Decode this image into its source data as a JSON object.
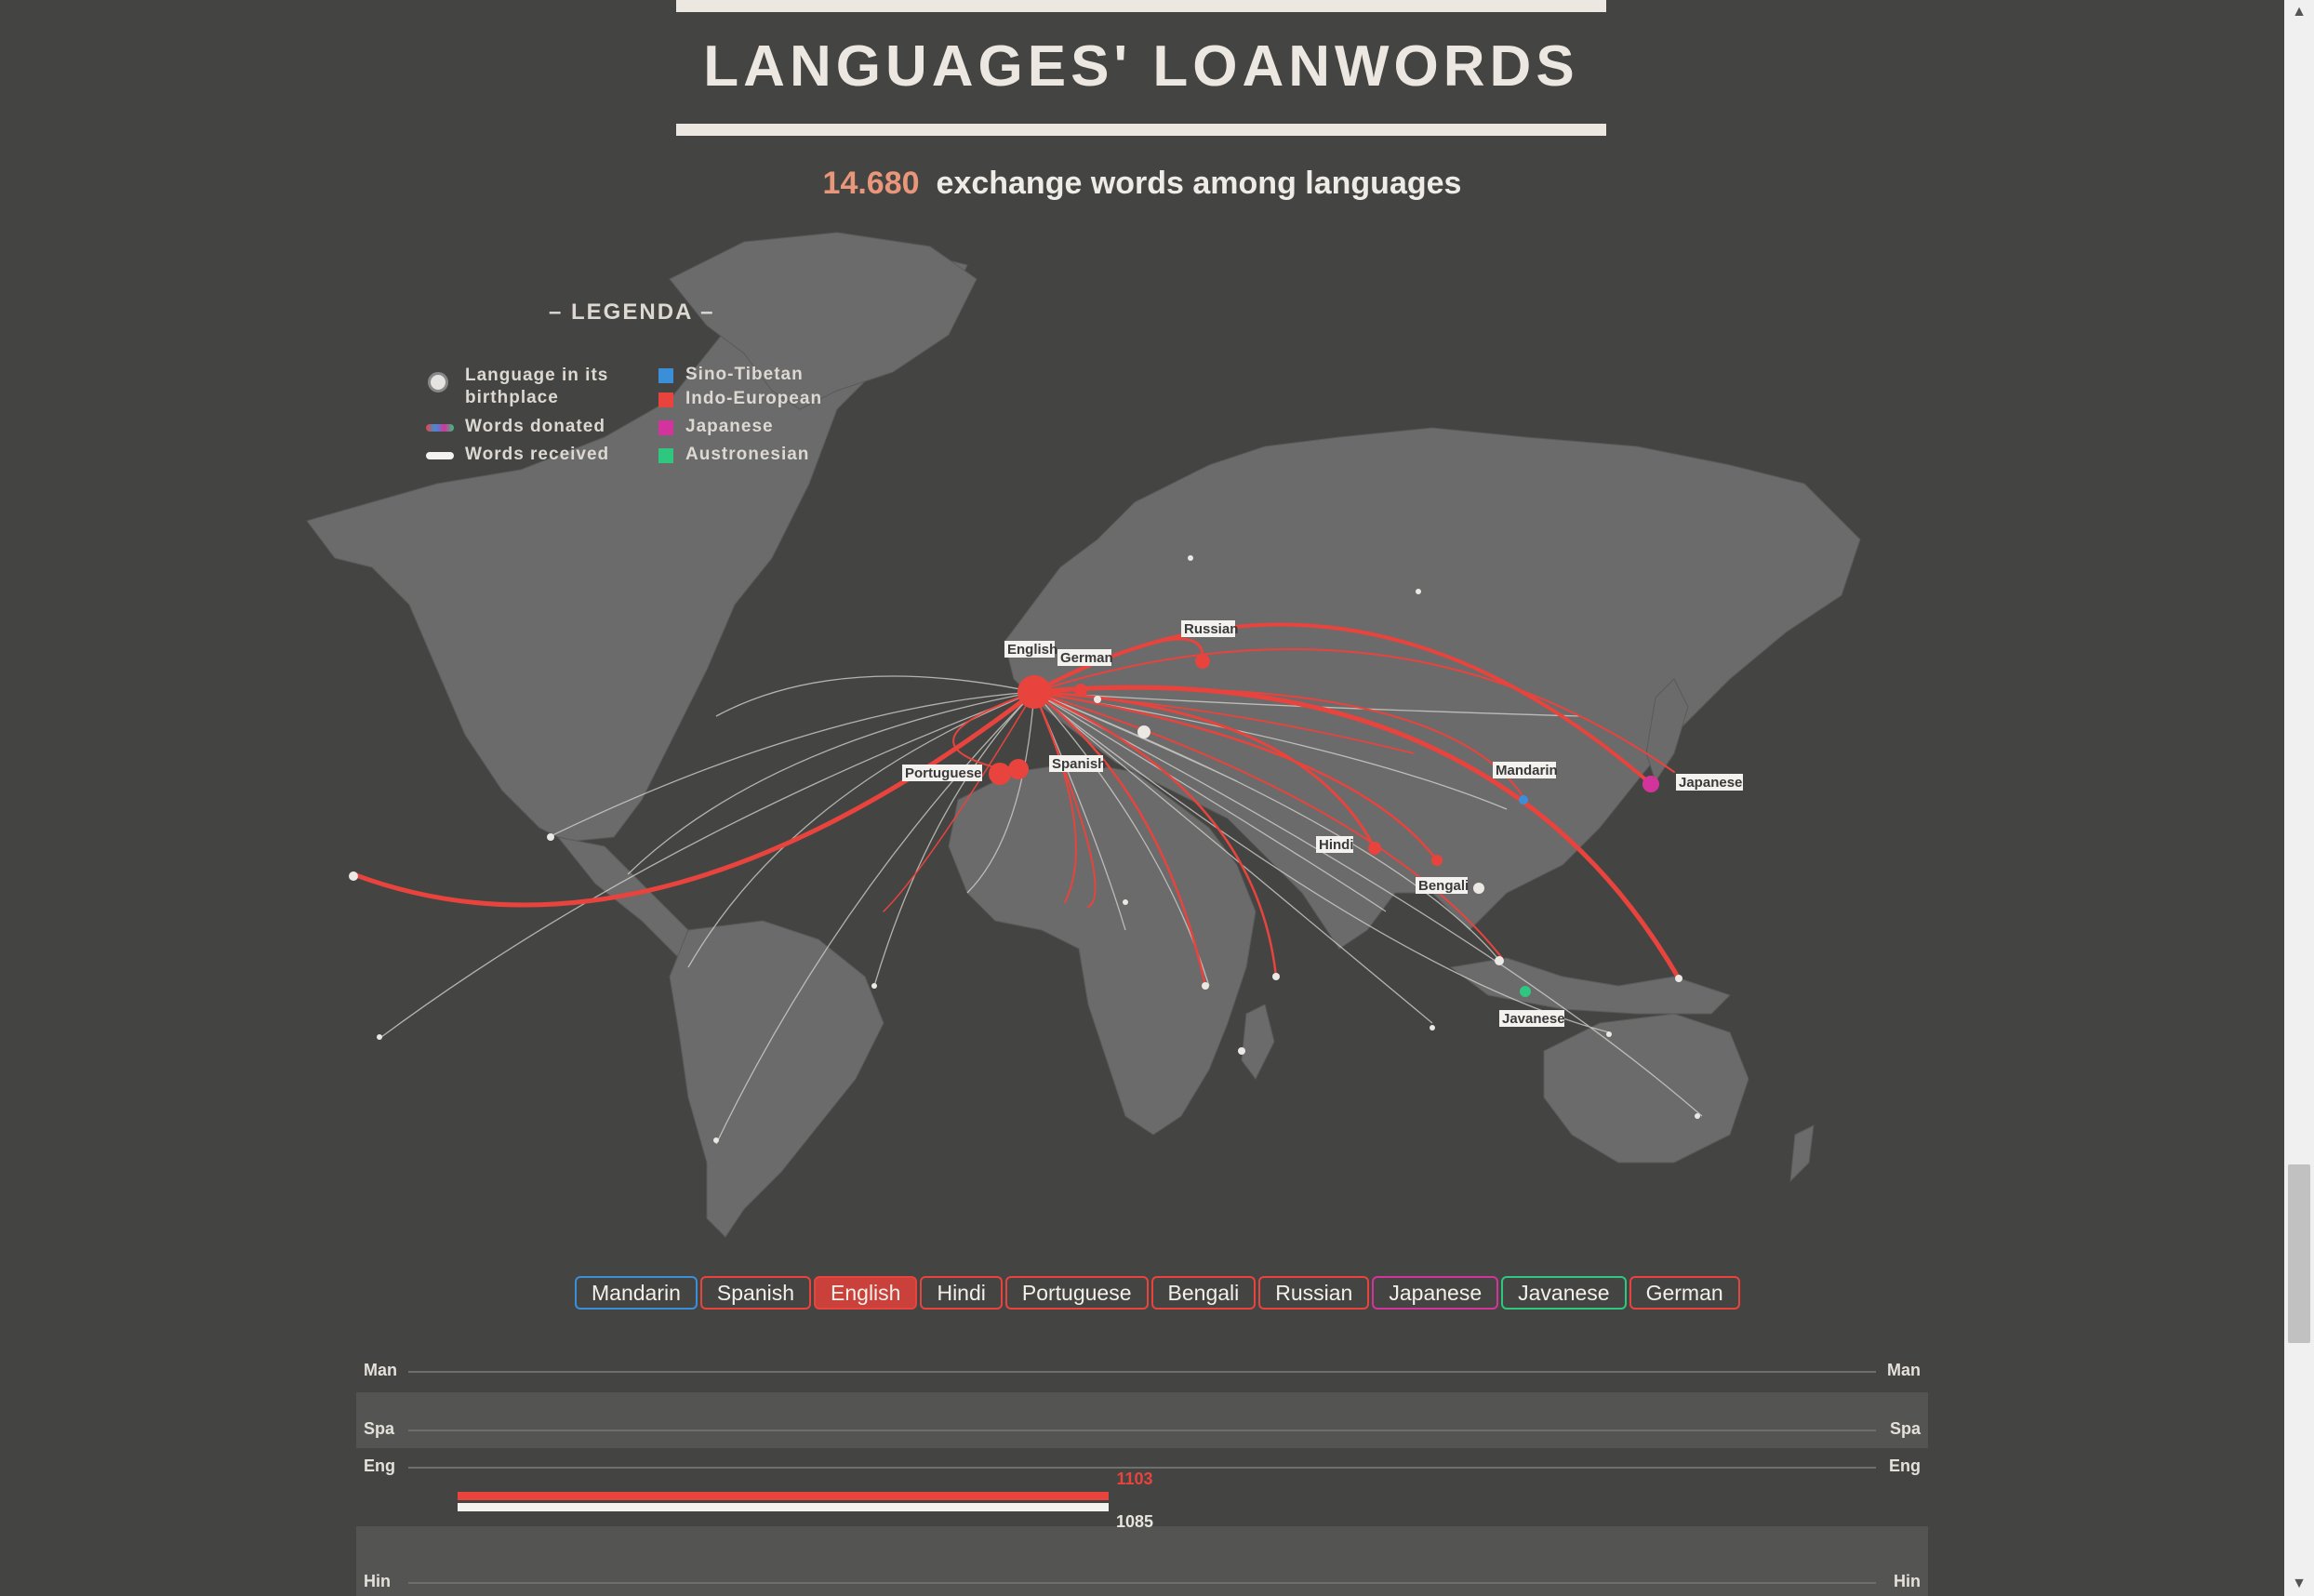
{
  "header": {
    "title": "LANGUAGES' LOANWORDS",
    "count": "14.680",
    "subtitle": "exchange words among languages"
  },
  "legend": {
    "title": "– LEGENDA –",
    "items": {
      "birthplace_line1": "Language in its",
      "birthplace_line2": "birthplace",
      "donated": "Words donated",
      "received": "Words received",
      "sino_tibetan": "Sino-Tibetan",
      "indo_european": "Indo-European",
      "japanese": "Japanese",
      "austronesian": "Austronesian"
    },
    "colors": {
      "sino_tibetan": "#3b8fd9",
      "indo_european": "#e9433d",
      "japanese": "#d3349b",
      "austronesian": "#2fc77f"
    }
  },
  "map": {
    "labels": {
      "english": "English",
      "german": "German",
      "russian": "Russian",
      "portuguese": "Portuguese",
      "spanish": "Spanish",
      "mandarin": "Mandarin",
      "japanese": "Japanese",
      "hindi": "Hindi",
      "bengali": "Bengali",
      "javanese": "Javanese"
    }
  },
  "tabs": [
    {
      "label": "Mandarin",
      "color": "#3b8fd9",
      "active": false
    },
    {
      "label": "Spanish",
      "color": "#e9433d",
      "active": false
    },
    {
      "label": "English",
      "color": "#e9433d",
      "active": true
    },
    {
      "label": "Hindi",
      "color": "#e9433d",
      "active": false
    },
    {
      "label": "Portuguese",
      "color": "#e9433d",
      "active": false
    },
    {
      "label": "Bengali",
      "color": "#e9433d",
      "active": false
    },
    {
      "label": "Russian",
      "color": "#e9433d",
      "active": false
    },
    {
      "label": "Japanese",
      "color": "#d3349b",
      "active": false
    },
    {
      "label": "Javanese",
      "color": "#2fc77f",
      "active": false
    },
    {
      "label": "German",
      "color": "#e9433d",
      "active": false
    }
  ],
  "matrix": {
    "rows": [
      {
        "abbr": "Man"
      },
      {
        "abbr": "Spa"
      },
      {
        "abbr": "Eng"
      },
      {
        "abbr": "Hin"
      }
    ],
    "english": {
      "donated": "1103",
      "received": "1085"
    }
  }
}
